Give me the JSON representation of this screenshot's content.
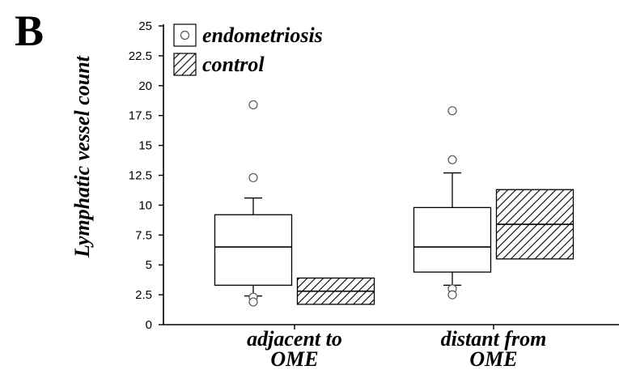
{
  "panel_label": "B",
  "chart_data": {
    "type": "box",
    "ylabel": "Lymphatic vessel count",
    "ylim": [
      0,
      25
    ],
    "yticks": [
      "0",
      "2.5",
      "5",
      "7.5",
      "10",
      "12.5",
      "15",
      "17.5",
      "20",
      "22.5",
      "25"
    ],
    "categories": [
      {
        "line1": "adjacent to",
        "line2": "OME"
      },
      {
        "line1": "distant from",
        "line2": "OME"
      }
    ],
    "legend": {
      "position": "top-left"
    },
    "series": [
      {
        "name": "endometriosis",
        "fill": "#ffffff",
        "boxes": [
          {
            "q1": 3.3,
            "median": 6.5,
            "q3": 9.2,
            "whisker_low": 2.4,
            "whisker_high": 10.6,
            "outliers": [
              2.3,
              1.9,
              12.3,
              18.4
            ]
          },
          {
            "q1": 4.4,
            "median": 6.5,
            "q3": 9.8,
            "whisker_low": 3.3,
            "whisker_high": 12.7,
            "outliers": [
              3.0,
              2.5,
              13.8,
              17.9
            ]
          }
        ]
      },
      {
        "name": "control",
        "fill": "hatch",
        "boxes": [
          {
            "q1": 1.7,
            "median": 2.8,
            "q3": 3.9,
            "whisker_low": null,
            "whisker_high": null,
            "outliers": []
          },
          {
            "q1": 5.5,
            "median": 8.4,
            "q3": 11.3,
            "whisker_low": null,
            "whisker_high": null,
            "outliers": []
          }
        ]
      }
    ]
  }
}
